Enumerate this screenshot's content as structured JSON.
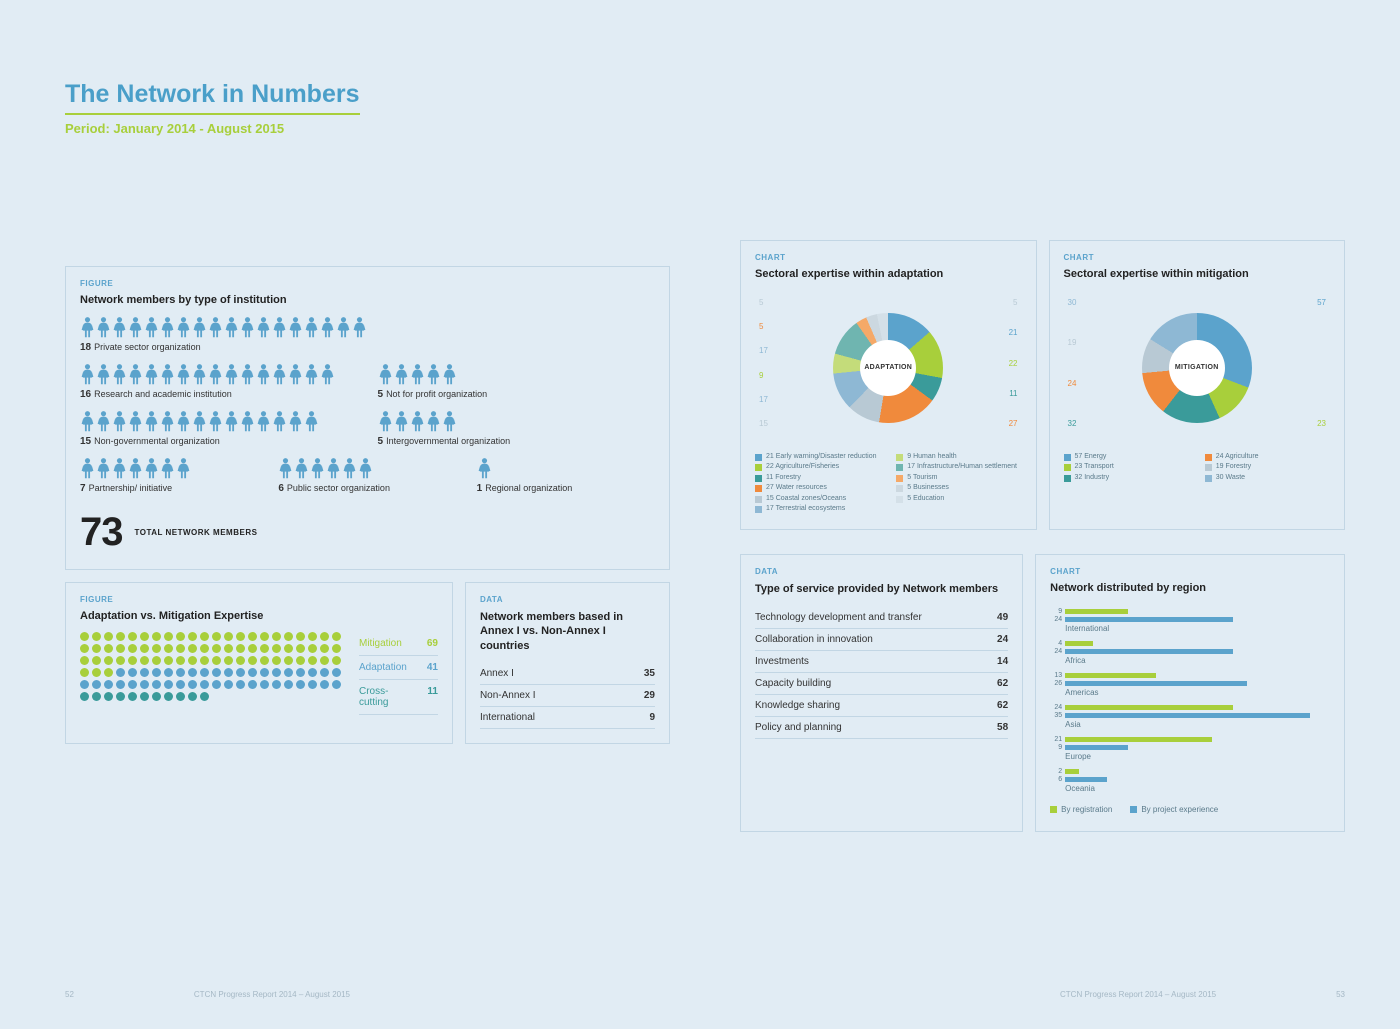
{
  "colors": {
    "blue": "#5ba3cc",
    "green": "#a8cf3b",
    "teal": "#3a9b9a",
    "orange": "#f08a3c",
    "grey": "#b8c9d4",
    "darkblue": "#4a7a9c"
  },
  "header": {
    "title": "The Network in Numbers",
    "period": "Period: January 2014 - August 2015"
  },
  "institutions": {
    "kicker": "FIGURE",
    "title": "Network members by type of institution",
    "rows": [
      [
        {
          "count": 18,
          "label": "Private sector organization"
        }
      ],
      [
        {
          "count": 16,
          "label": "Research and academic institution"
        },
        {
          "count": 5,
          "label": "Not for profit organization"
        }
      ],
      [
        {
          "count": 15,
          "label": "Non-governmental organization"
        },
        {
          "count": 5,
          "label": "Intergovernmental organization"
        }
      ],
      [
        {
          "count": 7,
          "label": "Partnership/ initiative"
        },
        {
          "count": 6,
          "label": "Public sector organization"
        },
        {
          "count": 1,
          "label": "Regional organization"
        }
      ]
    ],
    "total_value": "73",
    "total_label": "TOTAL NETWORK MEMBERS"
  },
  "expertise": {
    "kicker": "FIGURE",
    "title": "Adaptation vs. Mitigation Expertise",
    "per_row": 22,
    "items": [
      {
        "label": "Mitigation",
        "value": 69,
        "color": "#a8cf3b",
        "label_color": "#a8cf3b"
      },
      {
        "label": "Adaptation",
        "value": 41,
        "color": "#5ba3cc",
        "label_color": "#5ba3cc"
      },
      {
        "label": "Cross-cutting",
        "value": 11,
        "color": "#3a9b9a",
        "label_color": "#3a9b9a"
      }
    ]
  },
  "annex": {
    "kicker": "DATA",
    "title": "Network members based in Annex I vs. Non-Annex I countries",
    "rows": [
      {
        "label": "Annex I",
        "value": "35"
      },
      {
        "label": "Non-Annex I",
        "value": "29"
      },
      {
        "label": "International",
        "value": "9"
      }
    ]
  },
  "adaptation_donut": {
    "kicker": "CHART",
    "title": "Sectoral expertise within adaptation",
    "center": "ADAPTATION",
    "slices": [
      {
        "value": 21,
        "color": "#5ba3cc",
        "label": "Early warning/Disaster reduction"
      },
      {
        "value": 22,
        "color": "#a8cf3b",
        "label": "Agriculture/Fisheries"
      },
      {
        "value": 11,
        "color": "#3a9b9a",
        "label": "Forestry"
      },
      {
        "value": 27,
        "color": "#f08a3c",
        "label": "Water resources"
      },
      {
        "value": 15,
        "color": "#b8c9d4",
        "label": "Coastal zones/Oceans"
      },
      {
        "value": 17,
        "color": "#8eb8d4",
        "label": "Terrestrial ecosystems"
      },
      {
        "value": 9,
        "color": "#c4dc7a",
        "label": "Human health"
      },
      {
        "value": 17,
        "color": "#6fb5b0",
        "label": "Infrastructure/Human settlement"
      },
      {
        "value": 5,
        "color": "#f5a968",
        "label": "Tourism"
      },
      {
        "value": 5,
        "color": "#ccd8e0",
        "label": "Businesses"
      },
      {
        "value": 5,
        "color": "#d4e0e8",
        "label": "Education"
      }
    ],
    "callouts_left": [
      {
        "v": "5",
        "c": "#b8c9d4"
      },
      {
        "v": "5",
        "c": "#f08a3c"
      },
      {
        "v": "17",
        "c": "#8eb8d4"
      },
      {
        "v": "9",
        "c": "#a8cf3b"
      },
      {
        "v": "17",
        "c": "#8eb8d4"
      },
      {
        "v": "15",
        "c": "#b8c9d4"
      }
    ],
    "callouts_right": [
      {
        "v": "5",
        "c": "#b8c9d4"
      },
      {
        "v": "21",
        "c": "#5ba3cc"
      },
      {
        "v": "22",
        "c": "#a8cf3b"
      },
      {
        "v": "11",
        "c": "#3a9b9a"
      },
      {
        "v": "27",
        "c": "#f08a3c"
      }
    ]
  },
  "mitigation_donut": {
    "kicker": "CHART",
    "title": "Sectoral expertise within mitigation",
    "center": "MITIGATION",
    "slices": [
      {
        "value": 57,
        "color": "#5ba3cc",
        "label": "Energy"
      },
      {
        "value": 23,
        "color": "#a8cf3b",
        "label": "Transport"
      },
      {
        "value": 32,
        "color": "#3a9b9a",
        "label": "Industry"
      },
      {
        "value": 24,
        "color": "#f08a3c",
        "label": "Agriculture"
      },
      {
        "value": 19,
        "color": "#b8c9d4",
        "label": "Forestry"
      },
      {
        "value": 30,
        "color": "#8eb8d4",
        "label": "Waste"
      }
    ],
    "callouts_left": [
      {
        "v": "30",
        "c": "#8eb8d4"
      },
      {
        "v": "19",
        "c": "#b8c9d4"
      },
      {
        "v": "24",
        "c": "#f08a3c"
      },
      {
        "v": "32",
        "c": "#3a9b9a"
      }
    ],
    "callouts_right": [
      {
        "v": "57",
        "c": "#5ba3cc"
      },
      {
        "v": "23",
        "c": "#a8cf3b"
      }
    ]
  },
  "services": {
    "kicker": "DATA",
    "title": "Type of service provided by Network members",
    "rows": [
      {
        "label": "Technology development and transfer",
        "value": "49"
      },
      {
        "label": "Collaboration in innovation",
        "value": "24"
      },
      {
        "label": "Investments",
        "value": "14"
      },
      {
        "label": "Capacity building",
        "value": "62"
      },
      {
        "label": "Knowledge sharing",
        "value": "62"
      },
      {
        "label": "Policy and planning",
        "value": "58"
      }
    ]
  },
  "regions": {
    "kicker": "CHART",
    "title": "Network distributed by region",
    "max": 40,
    "items": [
      {
        "name": "International",
        "reg": 9,
        "proj": 24
      },
      {
        "name": "Africa",
        "reg": 4,
        "proj": 24
      },
      {
        "name": "Americas",
        "reg": 13,
        "proj": 26
      },
      {
        "name": "Asia",
        "reg": 24,
        "proj": 35
      },
      {
        "name": "Europe",
        "reg": 21,
        "proj": 9
      },
      {
        "name": "Oceania",
        "reg": 2,
        "proj": 6
      }
    ],
    "legend": [
      {
        "label": "By registration",
        "color": "#a8cf3b"
      },
      {
        "label": "By project experience",
        "color": "#5ba3cc"
      }
    ]
  },
  "footer": {
    "page_left": "52",
    "page_right": "53",
    "text": "CTCN Progress Report 2014 – August 2015"
  }
}
